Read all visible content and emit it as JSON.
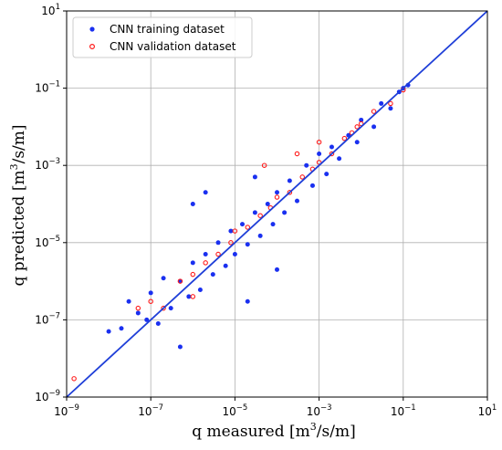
{
  "chart_data": {
    "type": "scatter",
    "xlabel": {
      "base": "q measured [m",
      "sup": "3",
      "rest": "/s/m]"
    },
    "ylabel": {
      "base": "q predicted [m",
      "sup": "3",
      "rest": "/s/m]"
    },
    "xscale": "log",
    "yscale": "log",
    "xlim": [
      1e-09,
      10
    ],
    "ylim": [
      1e-09,
      10
    ],
    "grid": true,
    "legend_position": "top-left",
    "x_ticks": [
      {
        "base": "10",
        "exp": "−9",
        "value": 1e-09
      },
      {
        "base": "10",
        "exp": "−7",
        "value": 1e-07
      },
      {
        "base": "10",
        "exp": "−5",
        "value": 1e-05
      },
      {
        "base": "10",
        "exp": "−3",
        "value": 0.001
      },
      {
        "base": "10",
        "exp": "−1",
        "value": 0.1
      },
      {
        "base": "10",
        "exp": "1",
        "value": 10
      }
    ],
    "y_ticks": [
      {
        "base": "10",
        "exp": "−9",
        "value": 1e-09
      },
      {
        "base": "10",
        "exp": "−7",
        "value": 1e-07
      },
      {
        "base": "10",
        "exp": "−5",
        "value": 1e-05
      },
      {
        "base": "10",
        "exp": "−3",
        "value": 0.001
      },
      {
        "base": "10",
        "exp": "−1",
        "value": 0.1
      },
      {
        "base": "10",
        "exp": "1",
        "value": 10
      }
    ],
    "reference_line": {
      "x": [
        1e-09,
        10
      ],
      "y": [
        1e-09,
        10
      ],
      "color": "#1f3fd8"
    },
    "series": [
      {
        "name": "CNN training dataset",
        "color": "#1a30f0",
        "marker": "filled-circle",
        "points": [
          [
            1e-08,
            5e-08
          ],
          [
            2e-08,
            6e-08
          ],
          [
            3e-08,
            3e-07
          ],
          [
            5e-08,
            1.5e-07
          ],
          [
            8e-08,
            1e-07
          ],
          [
            1e-07,
            5e-07
          ],
          [
            1.5e-07,
            8e-08
          ],
          [
            2e-07,
            1.2e-06
          ],
          [
            3e-07,
            2e-07
          ],
          [
            5e-07,
            1e-06
          ],
          [
            8e-07,
            4e-07
          ],
          [
            1e-06,
            3e-06
          ],
          [
            1.5e-06,
            6e-07
          ],
          [
            2e-06,
            5e-06
          ],
          [
            3e-06,
            1.5e-06
          ],
          [
            4e-06,
            1e-05
          ],
          [
            6e-06,
            2.5e-06
          ],
          [
            8e-06,
            2e-05
          ],
          [
            1e-05,
            5e-06
          ],
          [
            1.5e-05,
            3e-05
          ],
          [
            2e-05,
            9e-06
          ],
          [
            3e-05,
            6e-05
          ],
          [
            4e-05,
            1.5e-05
          ],
          [
            6e-05,
            0.0001
          ],
          [
            8e-05,
            3e-05
          ],
          [
            0.0001,
            0.0002
          ],
          [
            0.00015,
            6e-05
          ],
          [
            0.0002,
            0.0004
          ],
          [
            0.0003,
            0.00012
          ],
          [
            0.0005,
            0.001
          ],
          [
            0.0007,
            0.0003
          ],
          [
            0.001,
            0.002
          ],
          [
            0.0015,
            0.0006
          ],
          [
            0.002,
            0.003
          ],
          [
            0.003,
            0.0015
          ],
          [
            0.005,
            0.006
          ],
          [
            0.008,
            0.004
          ],
          [
            0.01,
            0.015
          ],
          [
            0.02,
            0.01
          ],
          [
            0.03,
            0.04
          ],
          [
            0.05,
            0.03
          ],
          [
            0.08,
            0.08
          ],
          [
            0.1,
            0.1
          ],
          [
            0.13,
            0.12
          ],
          [
            2e-06,
            0.0002
          ],
          [
            1e-06,
            0.0001
          ],
          [
            3e-05,
            0.0005
          ],
          [
            5e-07,
            2e-08
          ],
          [
            2e-05,
            3e-07
          ],
          [
            0.0001,
            2e-06
          ]
        ]
      },
      {
        "name": "CNN validation dataset",
        "color": "#ff1a1a",
        "marker": "hollow-circle",
        "points": [
          [
            1.5e-09,
            3e-09
          ],
          [
            5e-08,
            2e-07
          ],
          [
            1e-07,
            3e-07
          ],
          [
            2e-07,
            2e-07
          ],
          [
            5e-07,
            1e-06
          ],
          [
            1e-06,
            1.5e-06
          ],
          [
            2e-06,
            3e-06
          ],
          [
            4e-06,
            5e-06
          ],
          [
            8e-06,
            1e-05
          ],
          [
            1e-05,
            2e-05
          ],
          [
            2e-05,
            2.5e-05
          ],
          [
            4e-05,
            5e-05
          ],
          [
            7e-05,
            8e-05
          ],
          [
            0.0001,
            0.00015
          ],
          [
            0.0002,
            0.0002
          ],
          [
            0.0004,
            0.0005
          ],
          [
            0.0007,
            0.0008
          ],
          [
            0.001,
            0.0012
          ],
          [
            0.002,
            0.002
          ],
          [
            0.004,
            0.005
          ],
          [
            0.008,
            0.01
          ],
          [
            0.01,
            0.012
          ],
          [
            0.02,
            0.025
          ],
          [
            0.05,
            0.04
          ],
          [
            0.1,
            0.09
          ],
          [
            0.0003,
            0.002
          ],
          [
            0.001,
            0.004
          ],
          [
            5e-05,
            0.001
          ],
          [
            0.006,
            0.007
          ],
          [
            1e-06,
            4e-07
          ]
        ]
      }
    ]
  }
}
